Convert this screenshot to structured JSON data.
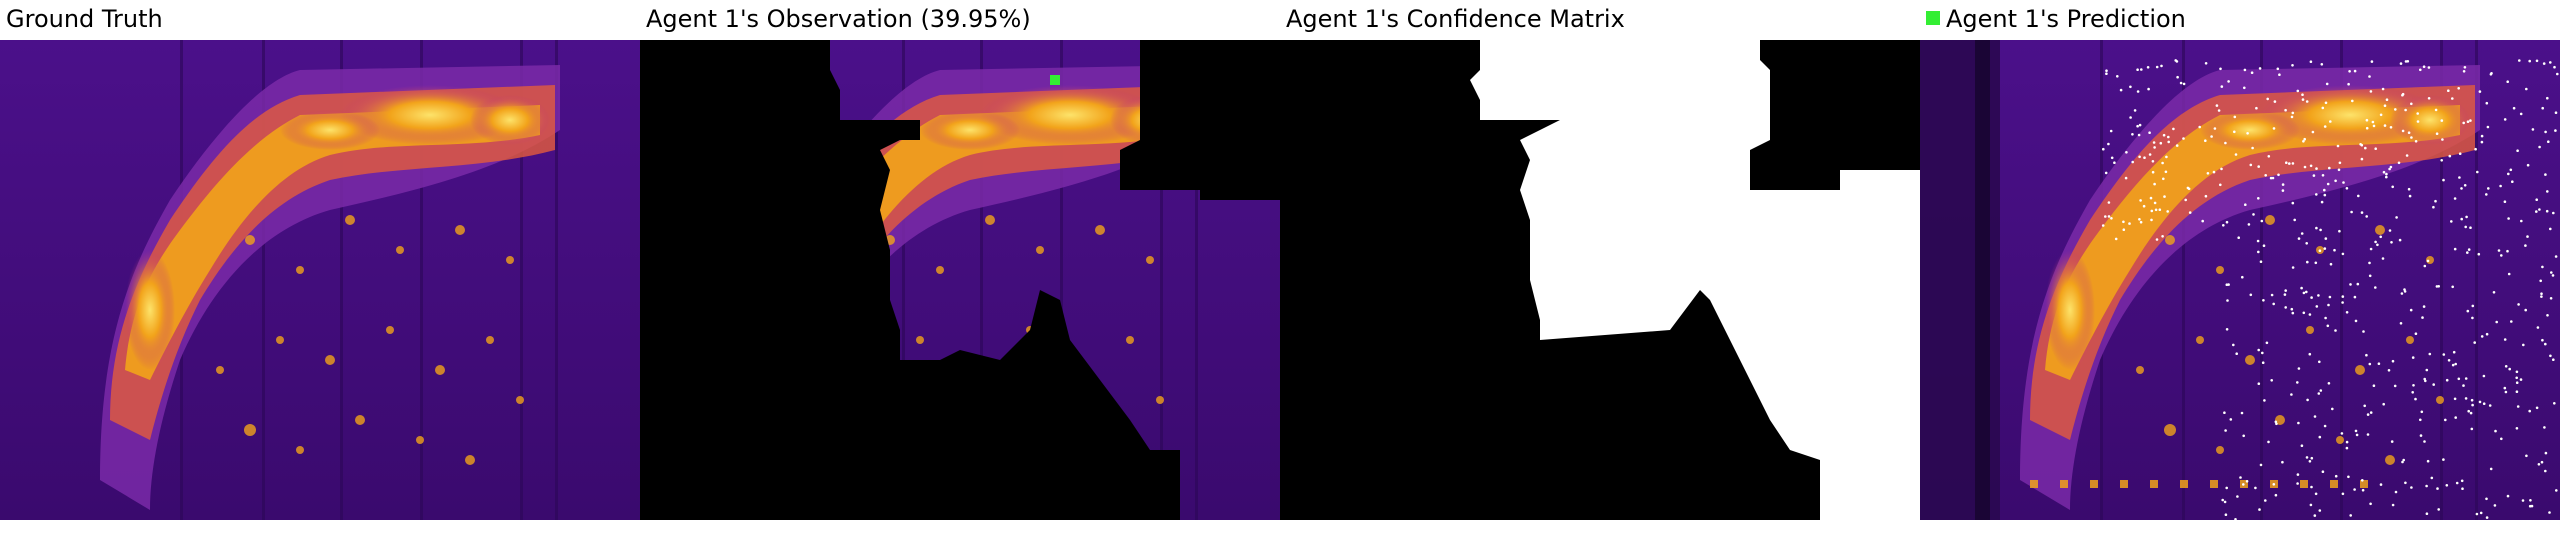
{
  "panels": [
    {
      "title": "Ground Truth"
    },
    {
      "title": "Agent 1's Observation (39.95%)"
    },
    {
      "title": "Agent 1's Confidence Matrix"
    },
    {
      "title": "Agent 1's Prediction"
    }
  ],
  "colors": {
    "background": "#ffffff",
    "heatmap_low": "#3a0a6e",
    "heatmap_mid": "#6b1fa8",
    "heatmap_high": "#f2a31a",
    "heatmap_peak": "#fde36a",
    "mask": "#000000",
    "confidence": "#ffffff",
    "agent_marker": "#33ee33",
    "prediction_points": "#ffffff"
  },
  "icons": {
    "agent_marker": "green-square-icon"
  }
}
